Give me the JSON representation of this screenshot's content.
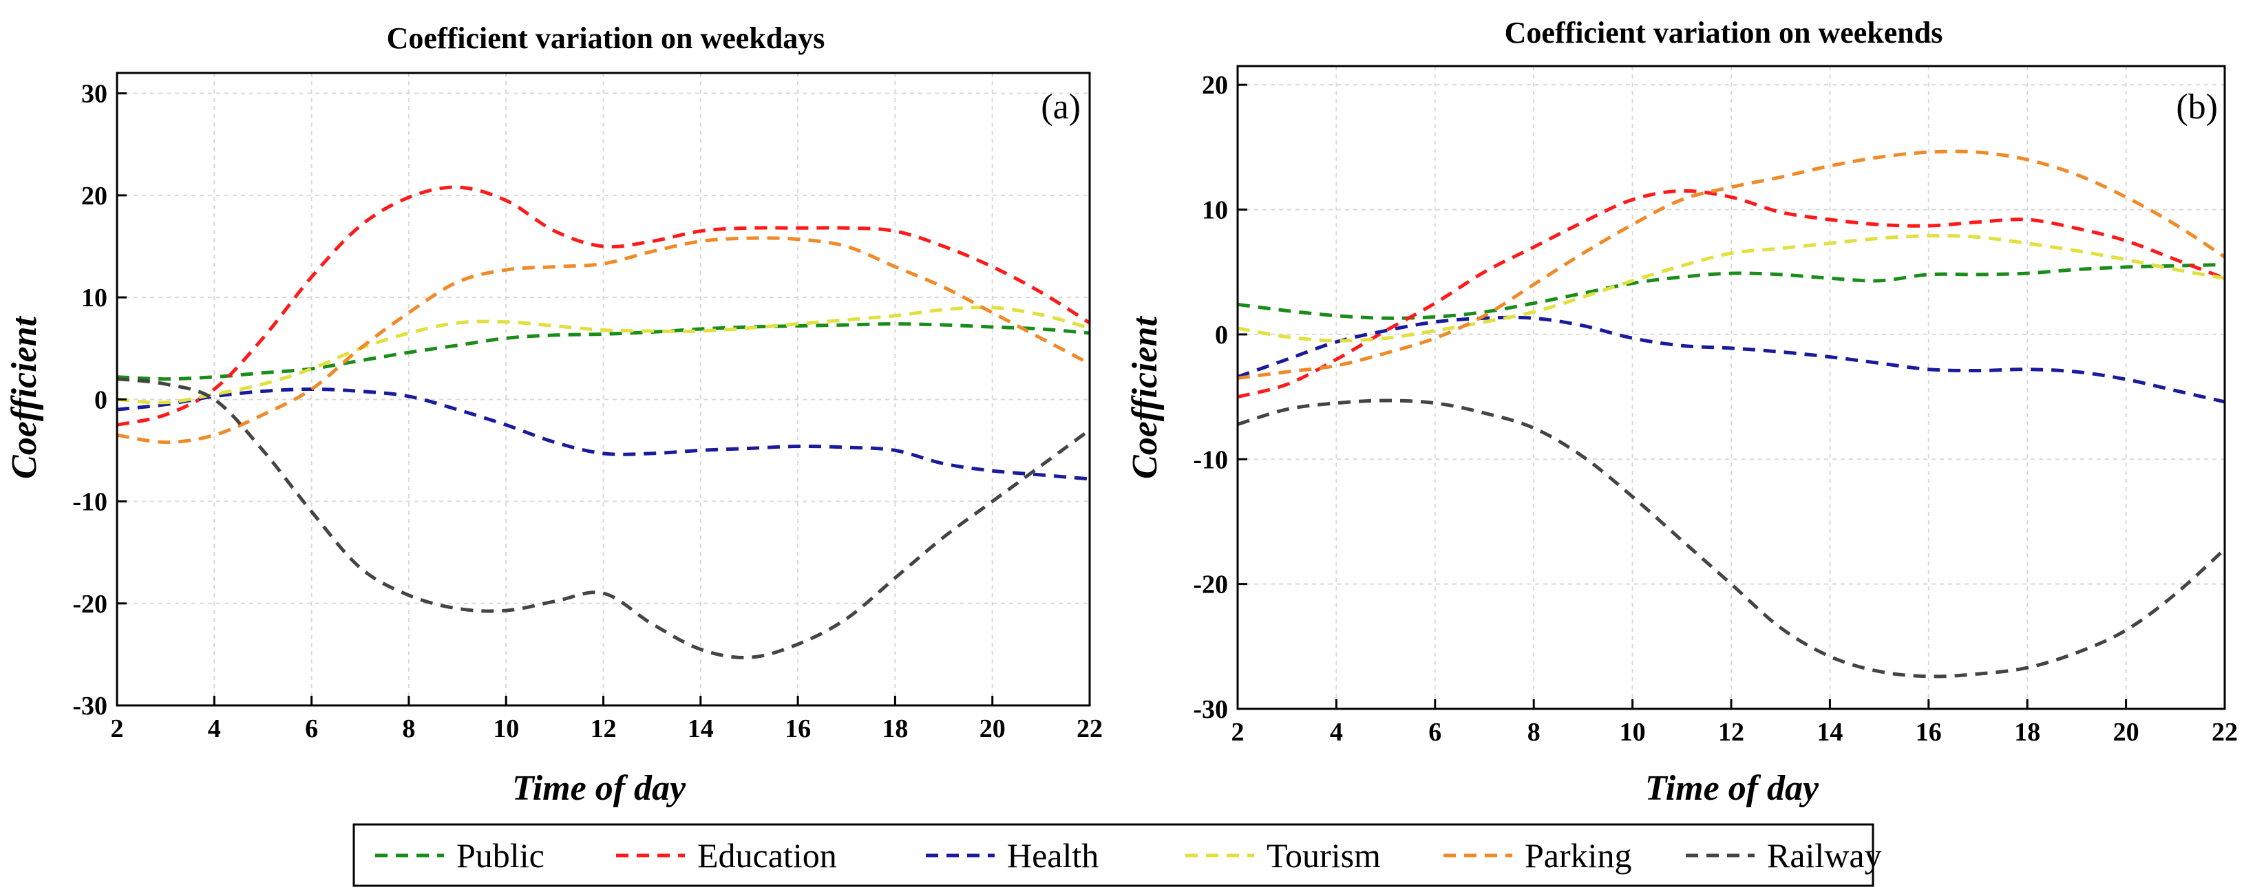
{
  "chart_data": [
    {
      "type": "line",
      "title": "Coefficient variation on weekdays",
      "panel_label": "(a)",
      "xlabel": "Time of day",
      "ylabel": "Coefficient",
      "xlim": [
        2,
        22
      ],
      "ylim": [
        -30,
        32
      ],
      "xticks": [
        2,
        4,
        6,
        8,
        10,
        12,
        14,
        16,
        18,
        20,
        22
      ],
      "yticks": [
        -30,
        -20,
        -10,
        0,
        10,
        20,
        30
      ],
      "grid": true,
      "series": [
        {
          "name": "Public",
          "color": "#1a8c1a",
          "x": [
            2,
            3,
            4,
            5,
            6,
            7,
            8,
            9,
            10,
            11,
            12,
            13,
            14,
            15,
            16,
            17,
            18,
            19,
            20,
            21,
            22
          ],
          "y": [
            2.2,
            2.0,
            2.2,
            2.6,
            3.0,
            3.8,
            4.6,
            5.3,
            6.0,
            6.3,
            6.4,
            6.6,
            6.9,
            7.1,
            7.2,
            7.3,
            7.4,
            7.3,
            7.1,
            6.9,
            6.5
          ]
        },
        {
          "name": "Education",
          "color": "#ff1a1a",
          "x": [
            2,
            3,
            4,
            5,
            6,
            7,
            8,
            9,
            10,
            11,
            12,
            13,
            14,
            15,
            16,
            17,
            18,
            19,
            20,
            21,
            22
          ],
          "y": [
            -2.5,
            -1.5,
            1.0,
            6.0,
            12.0,
            17.0,
            19.8,
            20.8,
            19.5,
            16.5,
            15.0,
            15.5,
            16.5,
            16.8,
            16.8,
            16.8,
            16.5,
            15.0,
            13.0,
            10.5,
            7.5
          ]
        },
        {
          "name": "Health",
          "color": "#1a1a9c",
          "x": [
            2,
            3,
            4,
            5,
            6,
            7,
            8,
            9,
            10,
            11,
            12,
            13,
            14,
            15,
            16,
            17,
            18,
            19,
            20,
            21,
            22
          ],
          "y": [
            -1.0,
            -0.5,
            0.3,
            0.8,
            1.0,
            0.8,
            0.3,
            -1.0,
            -2.5,
            -4.2,
            -5.3,
            -5.3,
            -5.0,
            -4.8,
            -4.6,
            -4.7,
            -5.0,
            -6.3,
            -7.0,
            -7.4,
            -7.8
          ]
        },
        {
          "name": "Tourism",
          "color": "#e0e040",
          "x": [
            2,
            3,
            4,
            5,
            6,
            7,
            8,
            9,
            10,
            11,
            12,
            13,
            14,
            15,
            16,
            17,
            18,
            19,
            20,
            21,
            22
          ],
          "y": [
            0.0,
            -0.3,
            0.5,
            1.5,
            3.0,
            5.0,
            6.5,
            7.5,
            7.6,
            7.2,
            6.8,
            6.7,
            6.7,
            7.0,
            7.4,
            7.8,
            8.2,
            8.8,
            9.0,
            8.3,
            7.0
          ]
        },
        {
          "name": "Parking",
          "color": "#f08a28",
          "x": [
            2,
            3,
            4,
            5,
            6,
            7,
            8,
            9,
            10,
            11,
            12,
            13,
            14,
            15,
            16,
            17,
            18,
            19,
            20,
            21,
            22
          ],
          "y": [
            -3.5,
            -4.2,
            -3.5,
            -1.5,
            1.0,
            5.0,
            8.5,
            11.5,
            12.7,
            13.0,
            13.3,
            14.5,
            15.5,
            15.8,
            15.7,
            15.0,
            13.0,
            11.0,
            8.5,
            6.0,
            3.5
          ]
        },
        {
          "name": "Railway",
          "color": "#444444",
          "x": [
            2,
            3,
            4,
            5,
            6,
            7,
            8,
            9,
            10,
            11,
            12,
            13,
            14,
            15,
            16,
            17,
            18,
            19,
            20,
            21,
            22
          ],
          "y": [
            2.0,
            1.5,
            0.0,
            -5.0,
            -11.0,
            -16.5,
            -19.2,
            -20.5,
            -20.7,
            -19.8,
            -19.0,
            -22.0,
            -24.5,
            -25.3,
            -24.0,
            -21.5,
            -17.5,
            -13.5,
            -10.0,
            -6.5,
            -3.0
          ]
        }
      ]
    },
    {
      "type": "line",
      "title": "Coefficient variation on weekends",
      "panel_label": "(b)",
      "xlabel": "Time of day",
      "ylabel": "Coefficient",
      "xlim": [
        2,
        22
      ],
      "ylim": [
        -30,
        21.5
      ],
      "xticks": [
        2,
        4,
        6,
        8,
        10,
        12,
        14,
        16,
        18,
        20,
        22
      ],
      "yticks": [
        -30,
        -20,
        -10,
        0,
        10,
        20
      ],
      "grid": true,
      "series": [
        {
          "name": "Public",
          "color": "#1a8c1a",
          "x": [
            2,
            3,
            4,
            5,
            6,
            7,
            8,
            9,
            10,
            11,
            12,
            13,
            14,
            15,
            16,
            17,
            18,
            19,
            20,
            21,
            22
          ],
          "y": [
            2.4,
            1.9,
            1.5,
            1.3,
            1.4,
            1.8,
            2.5,
            3.3,
            4.1,
            4.6,
            4.9,
            4.8,
            4.5,
            4.3,
            4.8,
            4.8,
            4.9,
            5.2,
            5.4,
            5.5,
            5.6
          ]
        },
        {
          "name": "Education",
          "color": "#ff1a1a",
          "x": [
            2,
            3,
            4,
            5,
            6,
            7,
            8,
            9,
            10,
            11,
            12,
            13,
            14,
            15,
            16,
            17,
            18,
            19,
            20,
            21,
            22
          ],
          "y": [
            -5.0,
            -4.0,
            -2.0,
            0.3,
            2.5,
            5.0,
            7.0,
            9.0,
            10.8,
            11.5,
            11.0,
            9.8,
            9.2,
            8.8,
            8.7,
            9.0,
            9.2,
            8.5,
            7.5,
            6.0,
            4.5
          ]
        },
        {
          "name": "Health",
          "color": "#1a1a9c",
          "x": [
            2,
            3,
            4,
            5,
            6,
            7,
            8,
            9,
            10,
            11,
            12,
            13,
            14,
            15,
            16,
            17,
            18,
            19,
            20,
            21,
            22
          ],
          "y": [
            -3.4,
            -2.0,
            -0.6,
            0.3,
            1.0,
            1.3,
            1.3,
            0.7,
            -0.3,
            -0.9,
            -1.1,
            -1.4,
            -1.8,
            -2.3,
            -2.8,
            -2.9,
            -2.8,
            -3.0,
            -3.6,
            -4.5,
            -5.4
          ]
        },
        {
          "name": "Tourism",
          "color": "#e0e040",
          "x": [
            2,
            3,
            4,
            5,
            6,
            7,
            8,
            9,
            10,
            11,
            12,
            13,
            14,
            15,
            16,
            17,
            18,
            19,
            20,
            21,
            22
          ],
          "y": [
            0.5,
            -0.2,
            -0.5,
            -0.3,
            0.3,
            1.0,
            1.8,
            3.0,
            4.3,
            5.5,
            6.5,
            6.9,
            7.3,
            7.7,
            7.9,
            7.8,
            7.3,
            6.7,
            6.0,
            5.2,
            4.5
          ]
        },
        {
          "name": "Parking",
          "color": "#f08a28",
          "x": [
            2,
            3,
            4,
            5,
            6,
            7,
            8,
            9,
            10,
            11,
            12,
            13,
            14,
            15,
            16,
            17,
            18,
            19,
            20,
            21,
            22
          ],
          "y": [
            -3.5,
            -3.0,
            -2.5,
            -1.5,
            -0.3,
            1.5,
            4.0,
            6.5,
            8.8,
            10.8,
            11.8,
            12.6,
            13.5,
            14.2,
            14.6,
            14.6,
            14.0,
            12.8,
            11.0,
            8.8,
            6.2
          ]
        },
        {
          "name": "Railway",
          "color": "#444444",
          "x": [
            2,
            3,
            4,
            5,
            6,
            7,
            8,
            9,
            10,
            11,
            12,
            13,
            14,
            15,
            16,
            17,
            18,
            19,
            20,
            21,
            22
          ],
          "y": [
            -7.2,
            -6.0,
            -5.5,
            -5.3,
            -5.5,
            -6.3,
            -7.5,
            -9.8,
            -13.0,
            -16.5,
            -20.0,
            -23.5,
            -25.8,
            -27.0,
            -27.4,
            -27.2,
            -26.7,
            -25.5,
            -23.7,
            -20.8,
            -17.2
          ]
        }
      ]
    }
  ],
  "legend": {
    "entries": [
      {
        "label": "Public",
        "color": "#1a8c1a"
      },
      {
        "label": "Education",
        "color": "#ff1a1a"
      },
      {
        "label": "Health",
        "color": "#1a1a9c"
      },
      {
        "label": "Tourism",
        "color": "#e0e040"
      },
      {
        "label": "Parking",
        "color": "#f08a28"
      },
      {
        "label": "Railway",
        "color": "#444444"
      }
    ]
  }
}
